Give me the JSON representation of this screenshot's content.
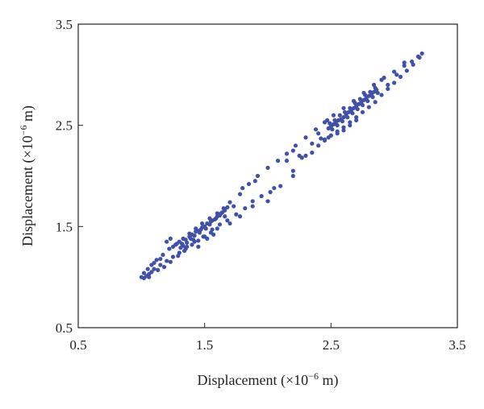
{
  "chart_data": {
    "type": "scatter",
    "title": "",
    "xlabel": {
      "main": "Displacement (×10",
      "exp": "−6",
      "unit": " m)"
    },
    "ylabel": {
      "main": "Displacement (×10",
      "exp": "−6",
      "unit": " m)"
    },
    "xlim": [
      0.5,
      3.5
    ],
    "ylim": [
      0.5,
      3.5
    ],
    "xticks": [
      "0.5",
      "1.5",
      "2.5",
      "3.5"
    ],
    "yticks": [
      "0.5",
      "1.5",
      "2.5",
      "3.5"
    ],
    "grid": false,
    "legend": "none",
    "color": "#3F51A8",
    "series": [
      {
        "points": [
          [
            1.0,
            1.0
          ],
          [
            1.02,
            0.99
          ],
          [
            1.04,
            1.01
          ],
          [
            1.06,
            1.03
          ],
          [
            1.08,
            1.05
          ],
          [
            1.1,
            1.08
          ],
          [
            1.15,
            1.12
          ],
          [
            1.2,
            1.16
          ],
          [
            1.25,
            1.2
          ],
          [
            1.3,
            1.24
          ],
          [
            1.35,
            1.28
          ],
          [
            1.4,
            1.32
          ],
          [
            1.45,
            1.36
          ],
          [
            1.5,
            1.4
          ],
          [
            1.55,
            1.44
          ],
          [
            1.6,
            1.48
          ],
          [
            1.68,
            1.56
          ],
          [
            1.75,
            1.62
          ],
          [
            1.82,
            1.68
          ],
          [
            1.88,
            1.75
          ],
          [
            1.95,
            1.8
          ],
          [
            2.02,
            1.84
          ],
          [
            2.1,
            1.9
          ],
          [
            2.2,
            2.05
          ],
          [
            2.2,
            2.0
          ],
          [
            2.27,
            2.18
          ],
          [
            2.3,
            2.2
          ],
          [
            2.35,
            2.23
          ],
          [
            2.4,
            2.3
          ],
          [
            2.45,
            2.36
          ],
          [
            2.5,
            2.4
          ],
          [
            2.55,
            2.44
          ],
          [
            2.6,
            2.48
          ],
          [
            2.65,
            2.53
          ],
          [
            2.7,
            2.58
          ],
          [
            2.75,
            2.63
          ],
          [
            2.8,
            2.68
          ],
          [
            2.85,
            2.73
          ],
          [
            2.9,
            2.8
          ],
          [
            2.95,
            2.86
          ],
          [
            3.0,
            2.92
          ],
          [
            3.05,
            2.98
          ],
          [
            3.1,
            3.04
          ],
          [
            3.15,
            3.1
          ],
          [
            3.2,
            3.17
          ],
          [
            3.22,
            3.21
          ],
          [
            1.02,
            1.04
          ],
          [
            1.05,
            1.08
          ],
          [
            1.08,
            1.12
          ],
          [
            1.12,
            1.17
          ],
          [
            1.17,
            1.22
          ],
          [
            1.22,
            1.28
          ],
          [
            1.28,
            1.33
          ],
          [
            1.33,
            1.38
          ],
          [
            1.38,
            1.43
          ],
          [
            1.43,
            1.48
          ],
          [
            1.48,
            1.53
          ],
          [
            1.54,
            1.58
          ],
          [
            1.6,
            1.63
          ],
          [
            1.65,
            1.68
          ],
          [
            1.7,
            1.74
          ],
          [
            1.78,
            1.82
          ],
          [
            1.85,
            1.92
          ],
          [
            1.92,
            2.0
          ],
          [
            2.0,
            2.08
          ],
          [
            2.08,
            2.15
          ],
          [
            2.15,
            2.22
          ],
          [
            2.22,
            2.3
          ],
          [
            2.3,
            2.38
          ],
          [
            2.38,
            2.46
          ],
          [
            2.45,
            2.53
          ],
          [
            2.52,
            2.6
          ],
          [
            2.6,
            2.67
          ],
          [
            2.68,
            2.74
          ],
          [
            2.76,
            2.82
          ],
          [
            2.84,
            2.9
          ],
          [
            2.92,
            2.97
          ],
          [
            3.0,
            3.03
          ],
          [
            3.08,
            3.09
          ],
          [
            3.14,
            3.13
          ],
          [
            3.19,
            3.18
          ],
          [
            1.25,
            1.3
          ],
          [
            1.3,
            1.35
          ],
          [
            1.32,
            1.33
          ],
          [
            1.35,
            1.37
          ],
          [
            1.38,
            1.4
          ],
          [
            1.4,
            1.42
          ],
          [
            1.42,
            1.41
          ],
          [
            1.44,
            1.46
          ],
          [
            1.46,
            1.44
          ],
          [
            1.48,
            1.49
          ],
          [
            1.5,
            1.5
          ],
          [
            1.52,
            1.53
          ],
          [
            1.54,
            1.52
          ],
          [
            1.56,
            1.56
          ],
          [
            1.58,
            1.57
          ],
          [
            1.6,
            1.6
          ],
          [
            1.62,
            1.61
          ],
          [
            1.64,
            1.64
          ],
          [
            1.66,
            1.66
          ],
          [
            1.68,
            1.69
          ],
          [
            1.33,
            1.31
          ],
          [
            1.36,
            1.34
          ],
          [
            1.39,
            1.38
          ],
          [
            1.41,
            1.37
          ],
          [
            1.43,
            1.45
          ],
          [
            1.47,
            1.47
          ],
          [
            1.51,
            1.48
          ],
          [
            1.55,
            1.55
          ],
          [
            1.59,
            1.58
          ],
          [
            1.63,
            1.63
          ],
          [
            2.48,
            2.47
          ],
          [
            2.5,
            2.49
          ],
          [
            2.52,
            2.51
          ],
          [
            2.54,
            2.52
          ],
          [
            2.56,
            2.55
          ],
          [
            2.58,
            2.56
          ],
          [
            2.6,
            2.58
          ],
          [
            2.62,
            2.61
          ],
          [
            2.64,
            2.63
          ],
          [
            2.66,
            2.65
          ],
          [
            2.68,
            2.67
          ],
          [
            2.7,
            2.69
          ],
          [
            2.72,
            2.71
          ],
          [
            2.74,
            2.73
          ],
          [
            2.76,
            2.75
          ],
          [
            2.78,
            2.77
          ],
          [
            2.8,
            2.79
          ],
          [
            2.82,
            2.81
          ],
          [
            2.84,
            2.83
          ],
          [
            2.86,
            2.85
          ],
          [
            2.49,
            2.52
          ],
          [
            2.53,
            2.55
          ],
          [
            2.57,
            2.6
          ],
          [
            2.61,
            2.63
          ],
          [
            2.65,
            2.67
          ],
          [
            2.69,
            2.72
          ],
          [
            2.73,
            2.76
          ],
          [
            2.77,
            2.8
          ],
          [
            2.81,
            2.83
          ],
          [
            2.85,
            2.87
          ],
          [
            2.51,
            2.46
          ],
          [
            2.55,
            2.5
          ],
          [
            2.59,
            2.54
          ],
          [
            2.63,
            2.58
          ],
          [
            2.67,
            2.62
          ],
          [
            2.71,
            2.66
          ],
          [
            2.75,
            2.7
          ],
          [
            2.79,
            2.74
          ],
          [
            2.83,
            2.78
          ],
          [
            2.87,
            2.82
          ],
          [
            2.45,
            2.35
          ],
          [
            2.48,
            2.38
          ],
          [
            2.55,
            2.42
          ],
          [
            2.6,
            2.45
          ],
          [
            2.65,
            2.5
          ],
          [
            2.7,
            2.55
          ],
          [
            1.2,
            1.35
          ],
          [
            1.23,
            1.38
          ],
          [
            1.27,
            1.32
          ],
          [
            1.31,
            1.29
          ],
          [
            1.34,
            1.26
          ],
          [
            1.45,
            1.3
          ],
          [
            1.52,
            1.38
          ],
          [
            1.57,
            1.42
          ],
          [
            1.7,
            1.53
          ],
          [
            1.78,
            1.6
          ],
          [
            1.88,
            1.7
          ],
          [
            2.0,
            1.75
          ],
          [
            2.05,
            1.88
          ],
          [
            2.25,
            2.2
          ],
          [
            2.35,
            2.32
          ],
          [
            2.42,
            2.37
          ],
          [
            2.9,
            2.95
          ],
          [
            2.95,
            2.9
          ],
          [
            3.02,
            3.0
          ],
          [
            3.08,
            3.12
          ],
          [
            2.15,
            2.15
          ],
          [
            2.2,
            2.25
          ],
          [
            2.4,
            2.42
          ],
          [
            2.47,
            2.55
          ],
          [
            1.9,
            1.95
          ],
          [
            1.8,
            1.88
          ],
          [
            1.73,
            1.7
          ],
          [
            1.66,
            1.6
          ],
          [
            1.15,
            1.18
          ],
          [
            1.1,
            1.14
          ],
          [
            1.06,
            1.0
          ],
          [
            1.13,
            1.07
          ],
          [
            1.18,
            1.1
          ],
          [
            1.23,
            1.15
          ],
          [
            1.29,
            1.21
          ],
          [
            1.36,
            1.3
          ],
          [
            1.42,
            1.35
          ],
          [
            1.49,
            1.4
          ],
          [
            1.56,
            1.47
          ],
          [
            1.62,
            1.52
          ]
        ]
      }
    ]
  }
}
